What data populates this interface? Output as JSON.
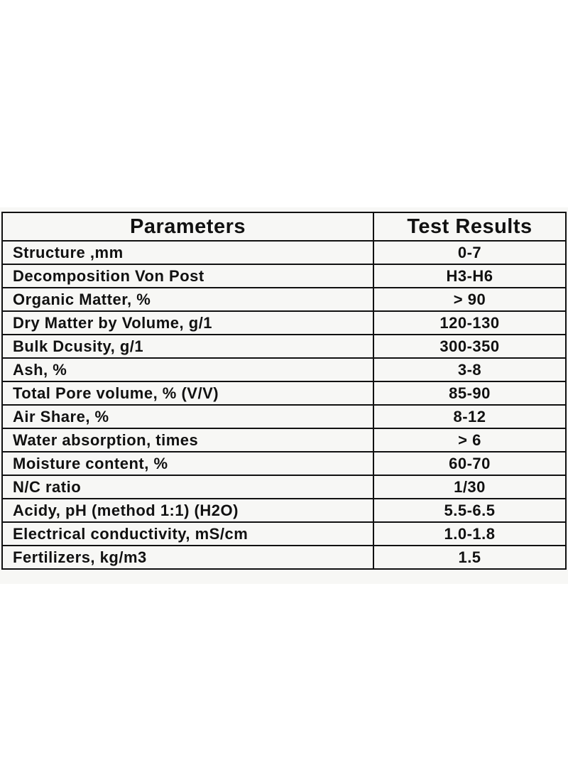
{
  "table": {
    "header": [
      "Parameters",
      "Test Results"
    ],
    "rows": [
      [
        "Structure ,mm",
        "0-7"
      ],
      [
        "Decomposition Von Post",
        "H3-H6"
      ],
      [
        "Organic Matter, %",
        "> 90"
      ],
      [
        "Dry Matter by Volume, g/1",
        "120-130"
      ],
      [
        "Bulk Dcusity, g/1",
        "300-350"
      ],
      [
        "Ash, %",
        "3-8"
      ],
      [
        "Total Pore volume, % (V/V)",
        "85-90"
      ],
      [
        "Air Share, %",
        "8-12"
      ],
      [
        "Water absorption, times",
        "> 6"
      ],
      [
        "Moisture content, %",
        "60-70"
      ],
      [
        "N/C ratio",
        "1/30"
      ],
      [
        "Acidy, pH (method 1:1) (H2O)",
        "5.5-6.5"
      ],
      [
        "Electrical conductivity, mS/cm",
        "1.0-1.8"
      ],
      [
        "Fertilizers, kg/m3",
        "1.5"
      ]
    ]
  }
}
